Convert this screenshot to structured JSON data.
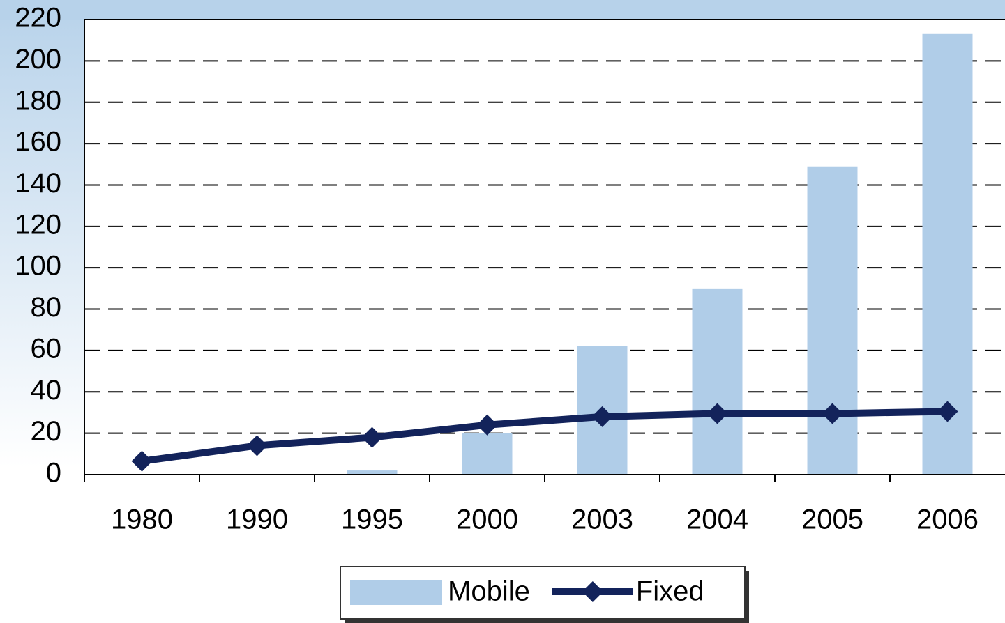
{
  "chart_data": {
    "type": "bar_line",
    "categories": [
      "1980",
      "1990",
      "1995",
      "2000",
      "2003",
      "2004",
      "2005",
      "2006"
    ],
    "series": [
      {
        "name": "Mobile",
        "type": "bar",
        "color": "#b0cde8",
        "values": [
          0,
          0,
          2,
          20,
          62,
          90,
          149,
          213
        ]
      },
      {
        "name": "Fixed",
        "type": "line",
        "color": "#13235b",
        "values": [
          6.5,
          14,
          18,
          24,
          28,
          29.5,
          29.5,
          30.5
        ]
      }
    ],
    "ylim": [
      0,
      220
    ],
    "yticks": [
      0,
      20,
      40,
      60,
      80,
      100,
      120,
      140,
      160,
      180,
      200,
      220
    ],
    "grid": true,
    "legend": "bottom"
  }
}
